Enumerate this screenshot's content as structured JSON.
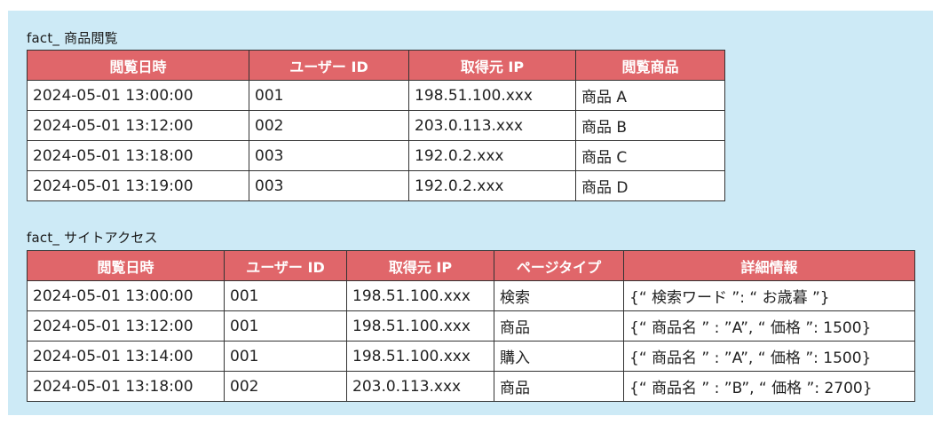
{
  "table1": {
    "caption": "fact_ 商品閲覧",
    "headers": [
      "閲覧日時",
      "ユーザー ID",
      "取得元 IP",
      "閲覧商品"
    ],
    "rows": [
      [
        "2024-05-01 13:00:00",
        "001",
        "198.51.100.xxx",
        "商品 A"
      ],
      [
        "2024-05-01 13:12:00",
        "002",
        "203.0.113.xxx",
        "商品 B"
      ],
      [
        "2024-05-01 13:18:00",
        "003",
        "192.0.2.xxx",
        "商品 C"
      ],
      [
        "2024-05-01 13:19:00",
        "003",
        "192.0.2.xxx",
        "商品 D"
      ]
    ]
  },
  "table2": {
    "caption": "fact_ サイトアクセス",
    "headers": [
      "閲覧日時",
      "ユーザー ID",
      "取得元 IP",
      "ページタイプ",
      "詳細情報"
    ],
    "rows": [
      [
        "2024-05-01 13:00:00",
        "001",
        "198.51.100.xxx",
        "検索",
        "{“ 検索ワード ”: “ お歳暮 ”}"
      ],
      [
        "2024-05-01 13:12:00",
        "001",
        "198.51.100.xxx",
        "商品",
        "{“ 商品名 ” : ”A”, “ 価格 ”: 1500}"
      ],
      [
        "2024-05-01 13:14:00",
        "001",
        "198.51.100.xxx",
        "購入",
        "{“ 商品名 ” : ”A”, “ 価格 ”: 1500}"
      ],
      [
        "2024-05-01 13:18:00",
        "002",
        "203.0.113.xxx",
        "商品",
        "{“ 商品名 ” : ”B”, “ 価格 ”: 2700}"
      ]
    ]
  }
}
